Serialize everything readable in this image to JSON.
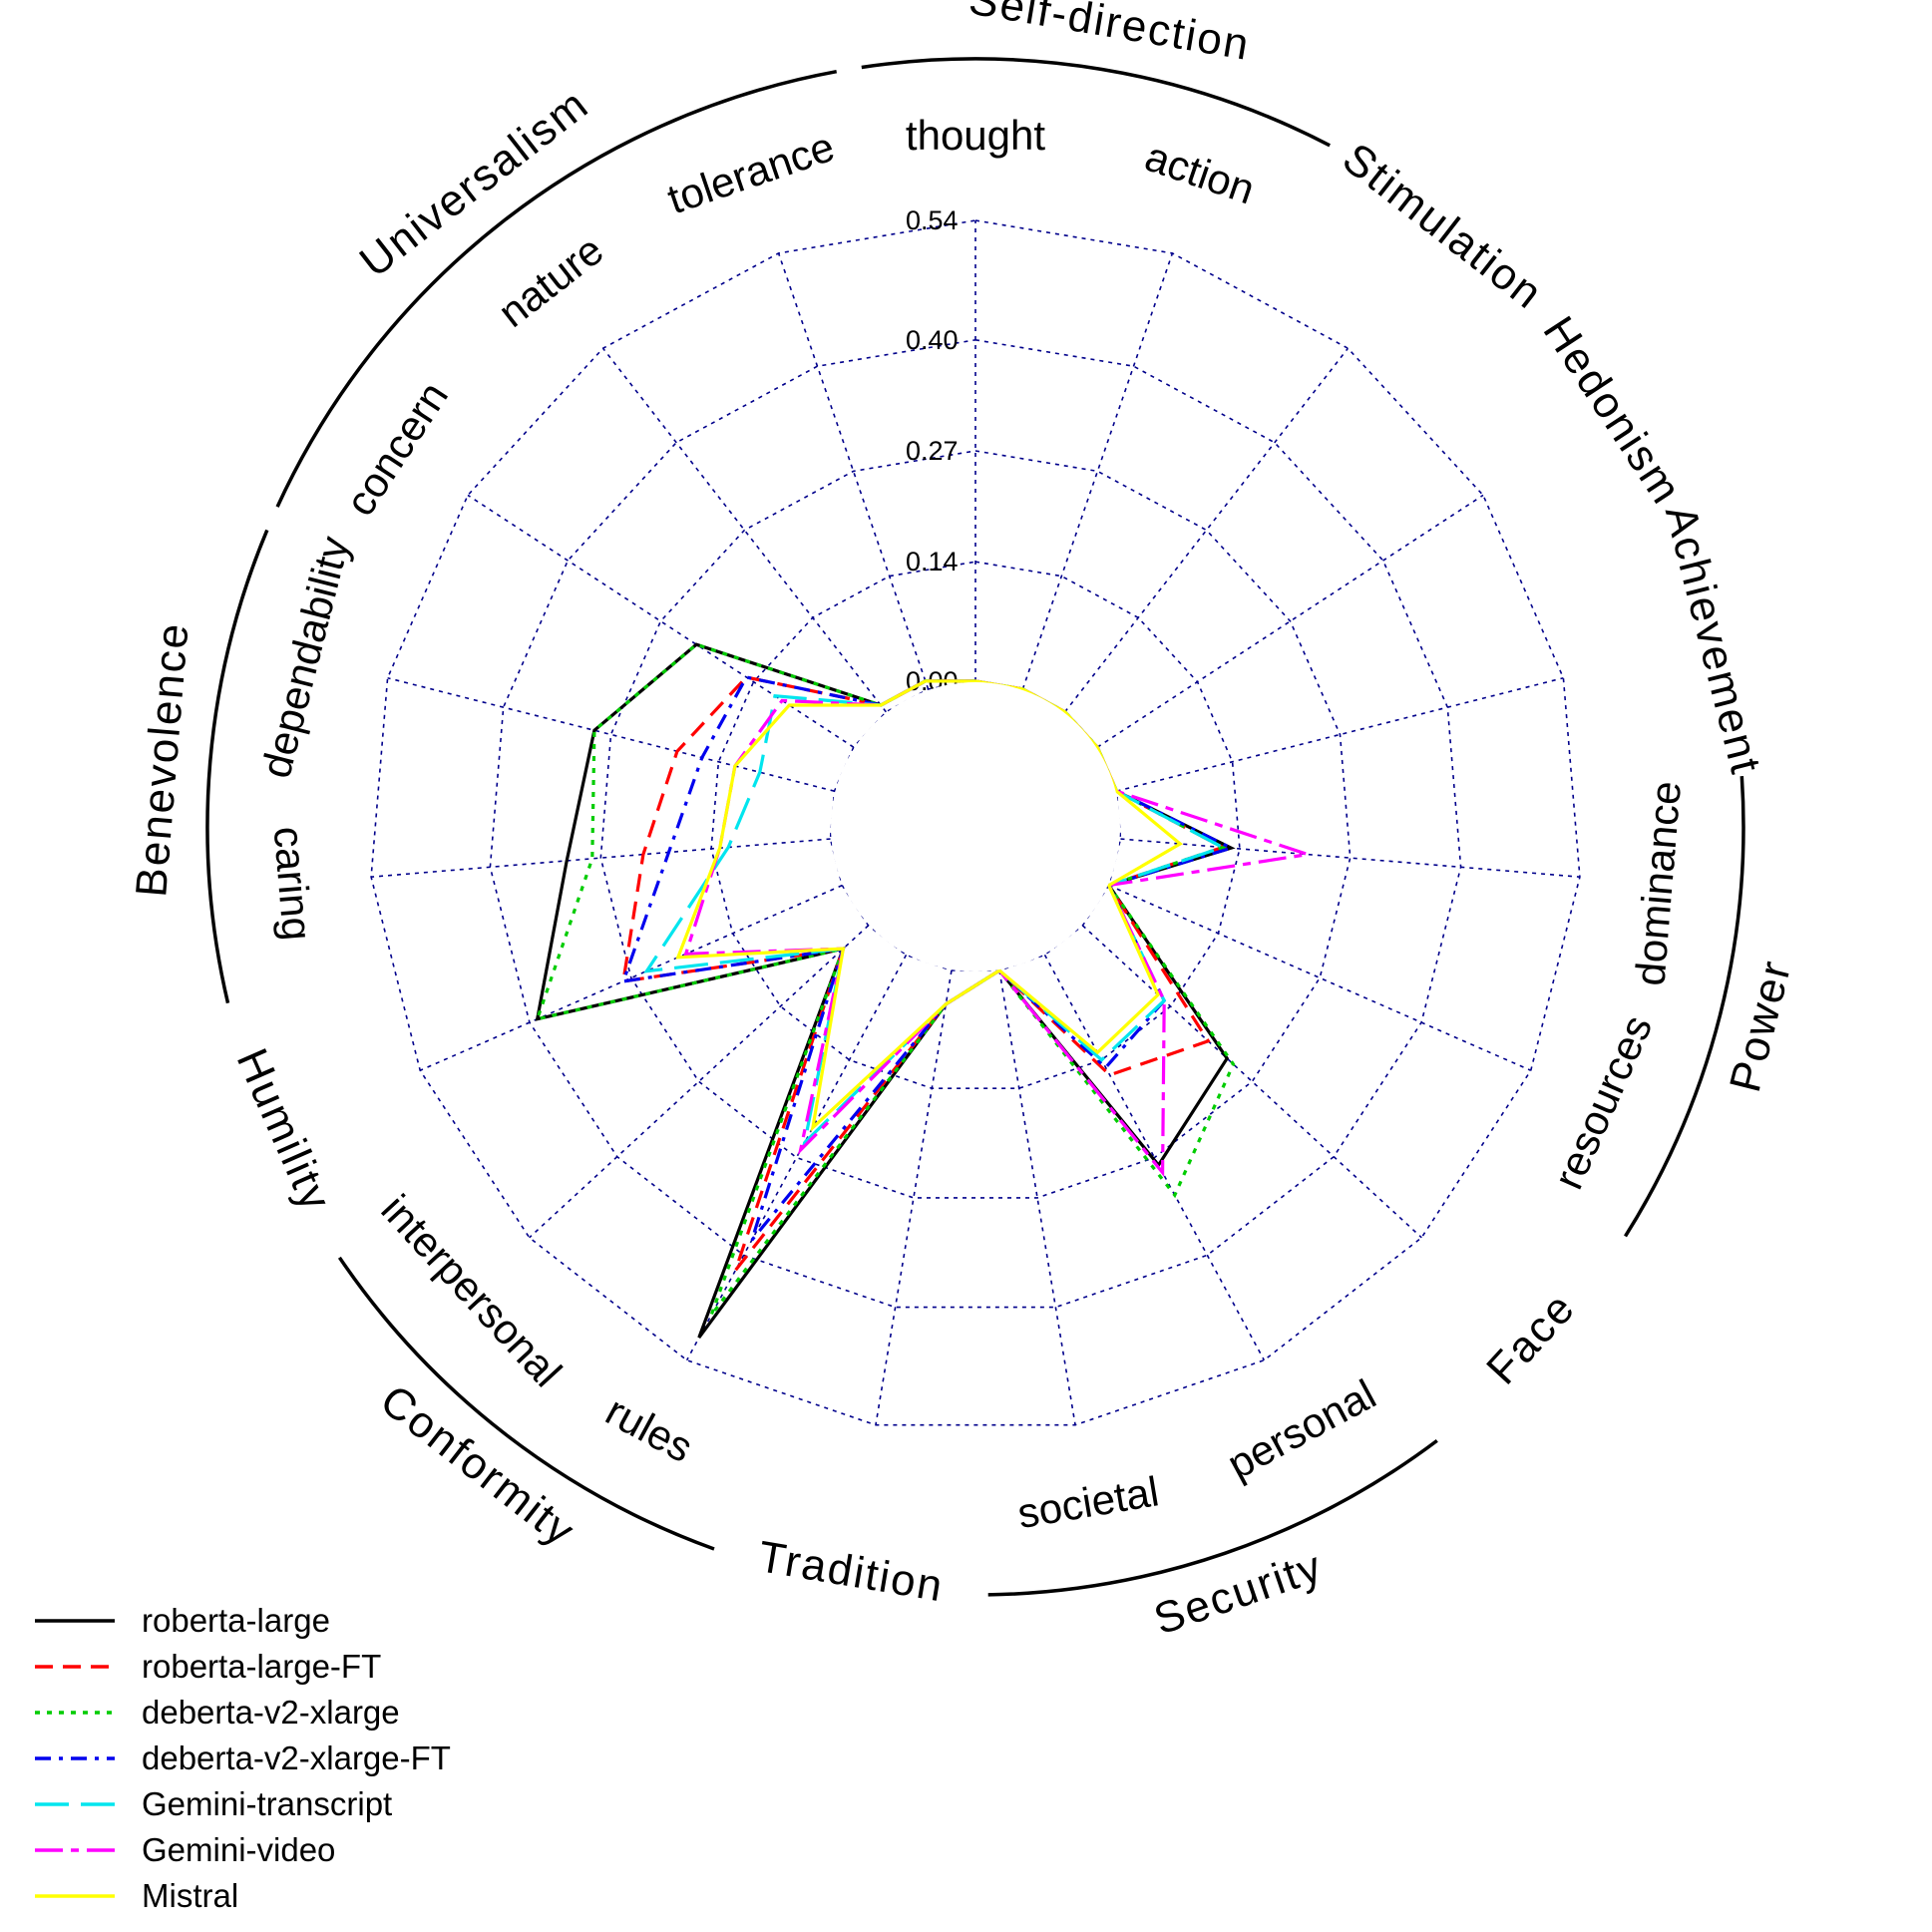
{
  "chart_data": {
    "type": "radar",
    "title": "",
    "axis": {
      "min": 0,
      "max": 0.54,
      "ticks": [
        0.0,
        0.14,
        0.27,
        0.4,
        0.54
      ],
      "tick_labels": [
        "0.00",
        "0.14",
        "0.27",
        "0.40",
        "0.54"
      ]
    },
    "spokes": [
      "thought",
      "action",
      "",
      "",
      "",
      "dominance",
      "resources",
      "",
      "personal",
      "societal",
      "",
      "rules",
      "interpersonal",
      "",
      "caring",
      "dependability",
      "concern",
      "nature",
      "tolerance"
    ],
    "groups": [
      {
        "label": "Self-direction",
        "from": 0,
        "to": 1
      },
      {
        "label": "Stimulation",
        "from": 2,
        "to": 2
      },
      {
        "label": "Hedonism",
        "from": 3,
        "to": 3
      },
      {
        "label": "Achievement",
        "from": 4,
        "to": 4
      },
      {
        "label": "Power",
        "from": 5,
        "to": 6
      },
      {
        "label": "Face",
        "from": 7,
        "to": 7
      },
      {
        "label": "Security",
        "from": 8,
        "to": 9
      },
      {
        "label": "Tradition",
        "from": 10,
        "to": 10
      },
      {
        "label": "Conformity",
        "from": 11,
        "to": 12
      },
      {
        "label": "Humility",
        "from": 13,
        "to": 13
      },
      {
        "label": "Benevolence",
        "from": 14,
        "to": 15
      },
      {
        "label": "Universalism",
        "from": 16,
        "to": 18
      }
    ],
    "series": [
      {
        "name": "roberta-large",
        "color": "#000000",
        "dash": "solid",
        "values": [
          0,
          0,
          0,
          0,
          0,
          0.13,
          0,
          0.23,
          0.28,
          0,
          0.04,
          0.51,
          0.04,
          0.39,
          0.31,
          0.29,
          0.22,
          0.01,
          0.01
        ]
      },
      {
        "name": "roberta-large-FT",
        "color": "#ff0000",
        "dash": "dashed",
        "values": [
          0,
          0,
          0,
          0,
          0,
          0.12,
          0,
          0.2,
          0.16,
          0,
          0.04,
          0.42,
          0.04,
          0.28,
          0.22,
          0.19,
          0.15,
          0.01,
          0.01
        ]
      },
      {
        "name": "deberta-v2-xlarge",
        "color": "#00cc00",
        "dash": "dotted",
        "values": [
          0,
          0,
          0,
          0,
          0,
          0.12,
          0,
          0.24,
          0.32,
          0,
          0.04,
          0.48,
          0.04,
          0.39,
          0.28,
          0.29,
          0.22,
          0.01,
          0.01
        ]
      },
      {
        "name": "deberta-v2-xlarge-FT",
        "color": "#0000ee",
        "dash": "dashdot",
        "values": [
          0,
          0,
          0,
          0,
          0,
          0.13,
          0,
          0.13,
          0.15,
          0,
          0.04,
          0.38,
          0.04,
          0.28,
          0.19,
          0.16,
          0.15,
          0.01,
          0.01
        ]
      },
      {
        "name": "Gemini-transcript",
        "color": "#00e5ee",
        "dash": "longdash",
        "values": [
          0,
          0,
          0,
          0,
          0,
          0.12,
          0,
          0.13,
          0.14,
          0,
          0.04,
          0.25,
          0.04,
          0.25,
          0.12,
          0.09,
          0.11,
          0.01,
          0.01
        ]
      },
      {
        "name": "Gemini-video",
        "color": "#ff00ff",
        "dash": "twodash",
        "values": [
          0,
          0,
          0,
          0,
          0,
          0.22,
          0,
          0.13,
          0.29,
          0,
          0.04,
          0.26,
          0.04,
          0.2,
          0.13,
          0.12,
          0.1,
          0.01,
          0.01
        ]
      },
      {
        "name": "Mistral",
        "color": "#ffff00",
        "dash": "solid",
        "values": [
          0,
          0,
          0,
          0,
          0,
          0.07,
          0,
          0.12,
          0.13,
          0,
          0.04,
          0.23,
          0.04,
          0.21,
          0.13,
          0.12,
          0.09,
          0.01,
          0.01
        ]
      }
    ],
    "legend_placement": "bottom-left",
    "grid": true
  }
}
